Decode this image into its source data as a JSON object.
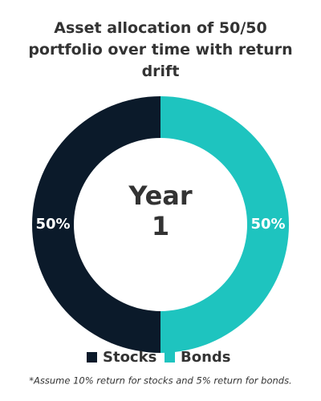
{
  "chart_data": {
    "type": "pie",
    "title": "Asset allocation of 50/50 portfolio over time with return drift",
    "center_label": [
      "Year",
      "1"
    ],
    "categories": [
      "Stocks",
      "Bonds"
    ],
    "values": [
      50,
      50
    ],
    "value_labels": [
      "50%",
      "50%"
    ],
    "colors": [
      "#0b1a2a",
      "#1ec4bf"
    ],
    "footnote": "*Assume 10% return for stocks and 5% return for bonds."
  }
}
